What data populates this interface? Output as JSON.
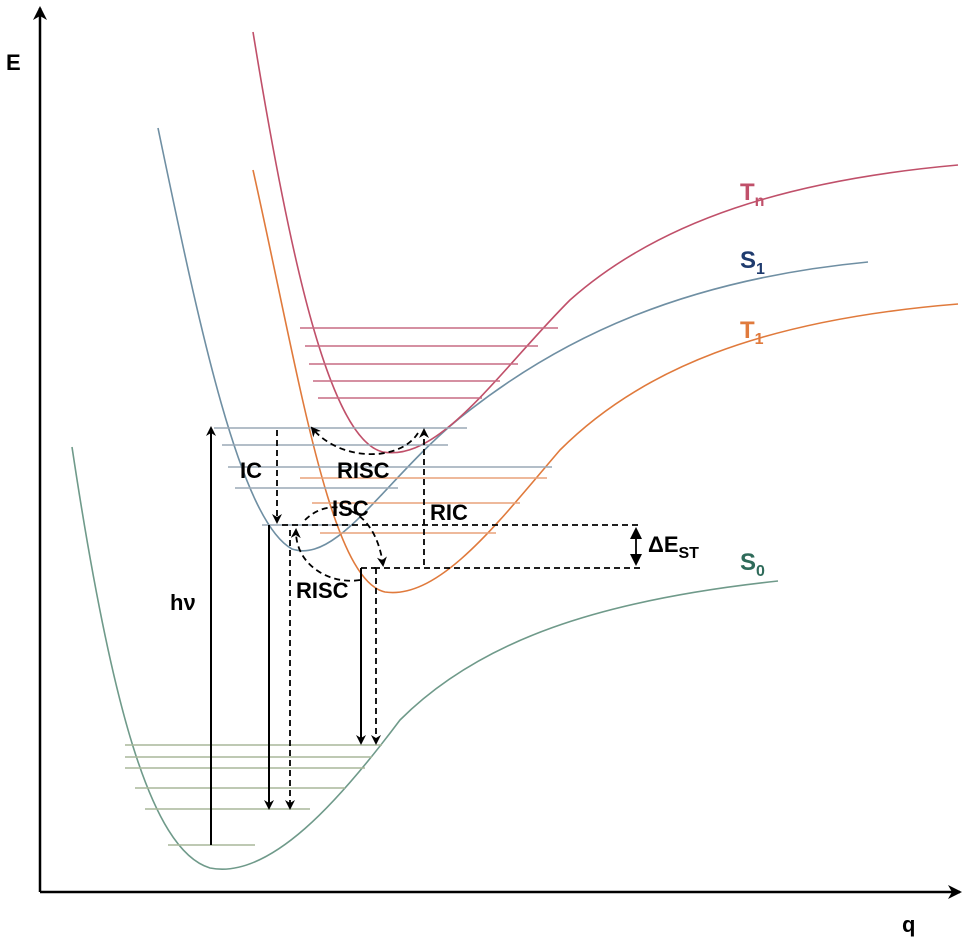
{
  "axes": {
    "y_label": "E",
    "x_label": "q"
  },
  "curves": {
    "tn": {
      "name": "T",
      "sub": "n",
      "color": "#c0506a"
    },
    "s1": {
      "name": "S",
      "sub": "1",
      "color": "#6f8fa3",
      "label_color": "#1f3b6e"
    },
    "t1": {
      "name": "T",
      "sub": "1",
      "color": "#e07a3c"
    },
    "s0": {
      "name": "S",
      "sub": "0",
      "color": "#6f9a8a",
      "label_color": "#2f6b5a"
    }
  },
  "transitions": {
    "absorption": "hν",
    "ic": "IC",
    "risc_top": "RISC",
    "isc": "ISC",
    "ric": "RIC",
    "risc_bottom": "RISC"
  },
  "gap": {
    "symbol": "ΔE",
    "sub": "ST"
  }
}
